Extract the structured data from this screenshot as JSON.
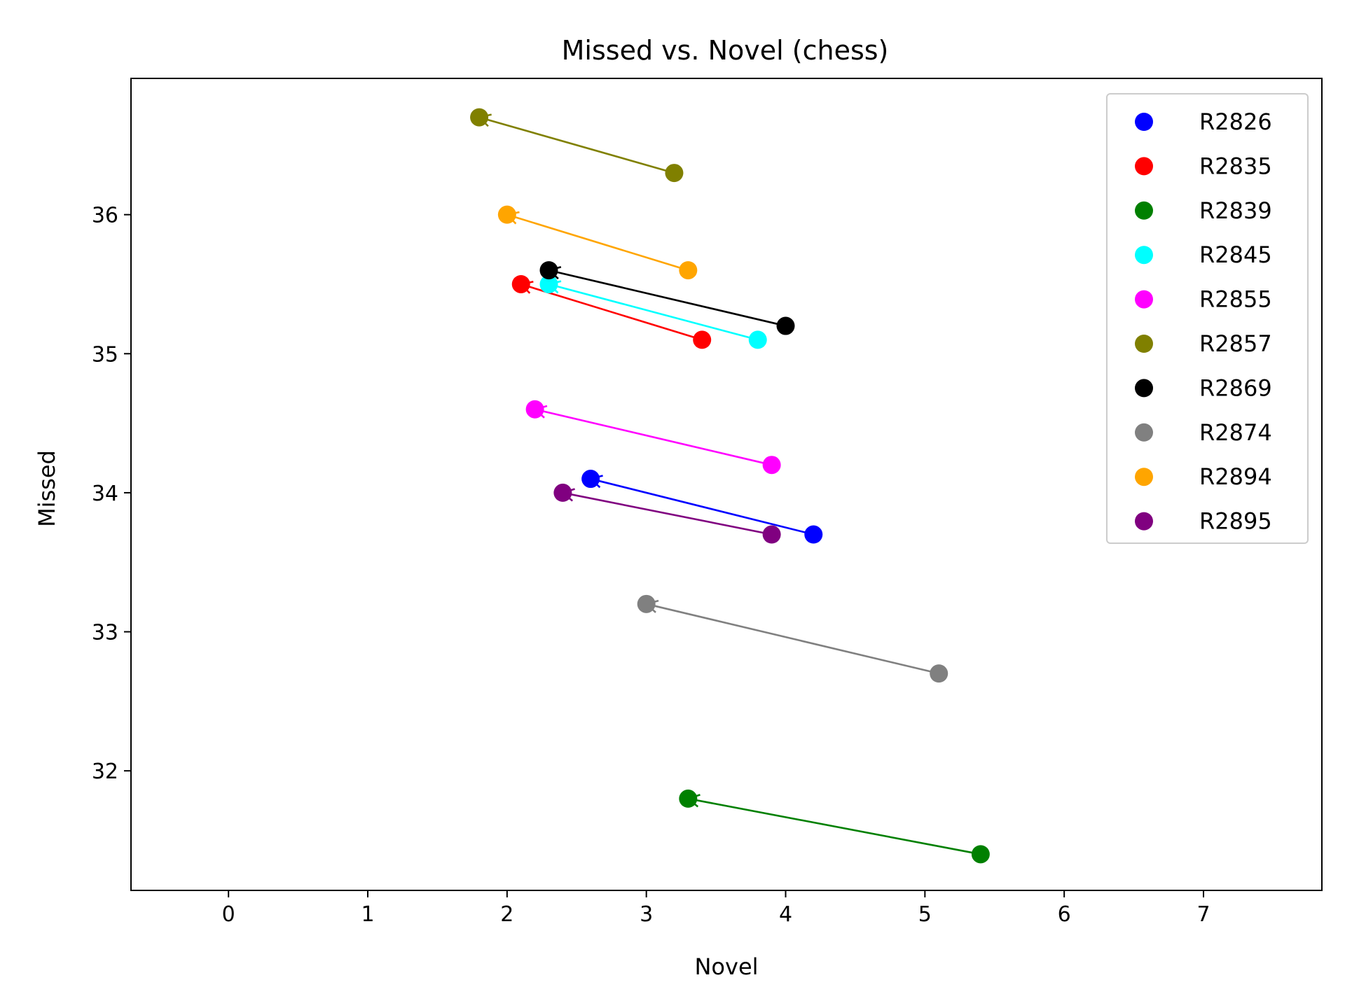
{
  "chart_data": {
    "type": "scatter",
    "title": "Missed vs. Novel (chess)",
    "xlabel": "Novel",
    "ylabel": "Missed",
    "xlim": [
      -0.7,
      7.85
    ],
    "ylim": [
      31.14,
      36.98
    ],
    "xticks": [
      0,
      1,
      2,
      3,
      4,
      5,
      6,
      7
    ],
    "yticks": [
      32,
      33,
      34,
      35,
      36
    ],
    "grid": false,
    "legend_position": "top-right",
    "annotation": "arrows point from first point to second point of each series",
    "series": [
      {
        "name": "R2826",
        "color": "#0000ff",
        "from": [
          4.2,
          33.7
        ],
        "to": [
          2.6,
          34.1
        ]
      },
      {
        "name": "R2835",
        "color": "#ff0000",
        "from": [
          3.4,
          35.1
        ],
        "to": [
          2.1,
          35.5
        ]
      },
      {
        "name": "R2839",
        "color": "#008000",
        "from": [
          5.4,
          31.4
        ],
        "to": [
          3.3,
          31.8
        ]
      },
      {
        "name": "R2845",
        "color": "#00ffff",
        "from": [
          3.8,
          35.1
        ],
        "to": [
          2.3,
          35.5
        ]
      },
      {
        "name": "R2855",
        "color": "#ff00ff",
        "from": [
          3.9,
          34.2
        ],
        "to": [
          2.2,
          34.6
        ]
      },
      {
        "name": "R2857",
        "color": "#808000",
        "from": [
          3.2,
          36.3
        ],
        "to": [
          1.8,
          36.7
        ]
      },
      {
        "name": "R2869",
        "color": "#000000",
        "from": [
          4.0,
          35.2
        ],
        "to": [
          2.3,
          35.6
        ]
      },
      {
        "name": "R2874",
        "color": "#808080",
        "from": [
          5.1,
          32.7
        ],
        "to": [
          3.0,
          33.2
        ]
      },
      {
        "name": "R2894",
        "color": "#ffa500",
        "from": [
          3.3,
          35.6
        ],
        "to": [
          2.0,
          36.0
        ]
      },
      {
        "name": "R2895",
        "color": "#800080",
        "from": [
          3.9,
          33.7
        ],
        "to": [
          2.4,
          34.0
        ]
      }
    ]
  }
}
